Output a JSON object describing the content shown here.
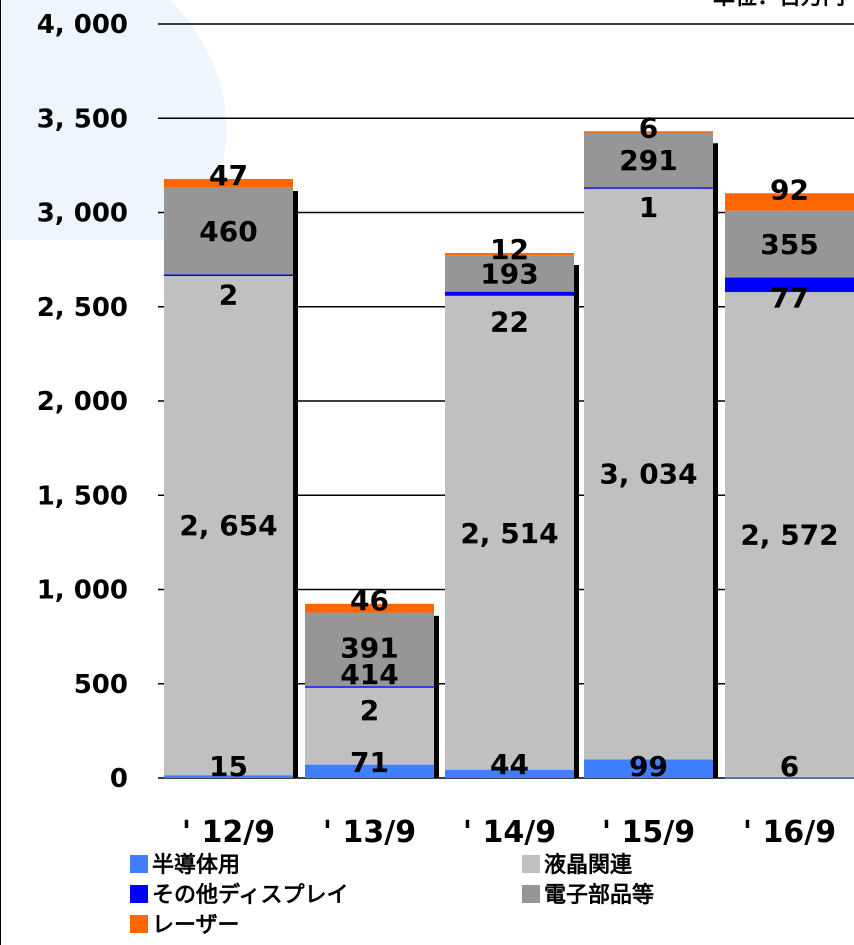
{
  "chart_data": {
    "type": "bar",
    "stacked": true,
    "unit_label": "単位：百万円",
    "categories": [
      "'12/9",
      "'13/9",
      "'14/9",
      "'15/9",
      "'16/9"
    ],
    "category_labels": [
      "' 12/9",
      "' 13/9",
      "' 14/9",
      "' 15/9",
      "' 16/9"
    ],
    "yticks": [
      "0",
      "500",
      "1, 000",
      "1, 500",
      "2, 000",
      "2, 500",
      "3, 000",
      "3, 500",
      "4, 000"
    ],
    "ylim": [
      0,
      4000
    ],
    "grid": true,
    "series": [
      {
        "name": "半導体用",
        "color": "#3f7fff",
        "values": [
          15,
          71,
          44,
          99,
          6
        ],
        "labels": [
          "15",
          "71",
          "44",
          "99",
          "6"
        ]
      },
      {
        "name": "液晶関連",
        "color": "#c0c0c0",
        "values": [
          2654,
          414,
          2514,
          3034,
          2572
        ],
        "labels": [
          "2, 654",
          "414",
          "2, 514",
          "3, 034",
          "2, 572"
        ]
      },
      {
        "name": "その他ディスプレイ",
        "color": "#0000ff",
        "values": [
          2,
          2,
          22,
          1,
          77
        ],
        "labels": [
          "2",
          "2",
          "22",
          "1",
          "77"
        ]
      },
      {
        "name": "電子部品等",
        "color": "#969696",
        "values": [
          460,
          391,
          193,
          291,
          355
        ],
        "labels": [
          "460",
          "391",
          "193",
          "291",
          "355"
        ]
      },
      {
        "name": "レーザー",
        "color": "#ff6600",
        "values": [
          47,
          46,
          12,
          6,
          92
        ],
        "labels": [
          "47",
          "46",
          "12",
          "6",
          "92"
        ]
      }
    ],
    "legend": {
      "position": "bottom"
    }
  }
}
